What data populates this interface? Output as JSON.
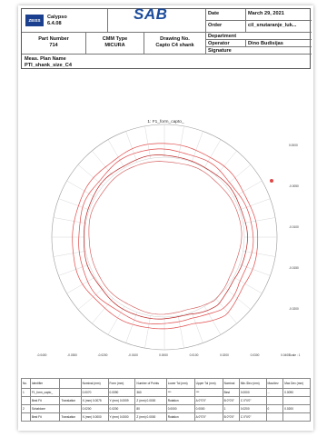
{
  "header": {
    "software": "Calypso",
    "version": "6.4.08",
    "logo_text": "SAB",
    "zeiss_text": "ZEISS",
    "part_number_label": "Part Number",
    "part_number": "714",
    "cmm_type_label": "CMM Type",
    "cmm_type": "MICURA",
    "drawing_no_label": "Drawing No.",
    "drawing_no": "Capto C4 shank",
    "date_label": "Date",
    "date": "March 29, 2021",
    "order_label": "Order",
    "order": "cil_snutaranje_luk...",
    "department_label": "Department",
    "operator_label": "Operator",
    "operator": "Dino Budisijas",
    "signature_label": "Signature",
    "meas_plan_label": "Meas. Plan Name",
    "meas_plan": "PTI_shank_size_C4"
  },
  "plot": {
    "title": "1: F1_form_capto_",
    "right_ticks": [
      "0.0000",
      "-0.0050",
      "-0.0100",
      "-0.0150",
      "-0.0200"
    ],
    "bottom_ticks": [
      "-0.0400",
      "-0.0300",
      "-0.0200",
      "-0.0100",
      "0.0000",
      "0.0100",
      "0.0200",
      "0.0300",
      "0.0400"
    ],
    "scale_text": "Scale : 1"
  },
  "table": {
    "headers": [
      "No.",
      "Identifier",
      "",
      "Nominal (mm)",
      "Form (mm)",
      "Number of Points",
      "Lower Tol (mm)",
      "Upper Tol (mm)",
      "Nominal",
      "Min./Dev (mm)",
      "Max/dev",
      "Max Dev (mm)"
    ],
    "rows": [
      [
        "1",
        "F1_form_capto_",
        "",
        "0.0070",
        "0.0090",
        "360",
        "***",
        "***",
        "Best",
        "0.0000",
        "...",
        "0.0090"
      ],
      [
        "",
        "Best Fit",
        "Translation",
        "X (mm) 0.0075",
        "Y (mm) 0.0009",
        "Z (mm) 0.0000",
        "Rotation",
        "A  0°0'0\"",
        "B  0°0'0\"",
        "C 0°0'0\"",
        "",
        ""
      ],
      [
        "2",
        "Schablone",
        "",
        "0.0200",
        "0.0200",
        "80",
        "0.0000",
        "0.0000",
        "1",
        "0.0200",
        "0",
        "0.0200"
      ],
      [
        "",
        "Best Fit",
        "Translation",
        "X (mm) 0.0000",
        "Y (mm) 0.0000",
        "Z (mm) 0.0000",
        "Rotation",
        "A  0°0'0\"",
        "B  0°0'0\"",
        "C 0°0'0\"",
        "",
        ""
      ]
    ]
  }
}
